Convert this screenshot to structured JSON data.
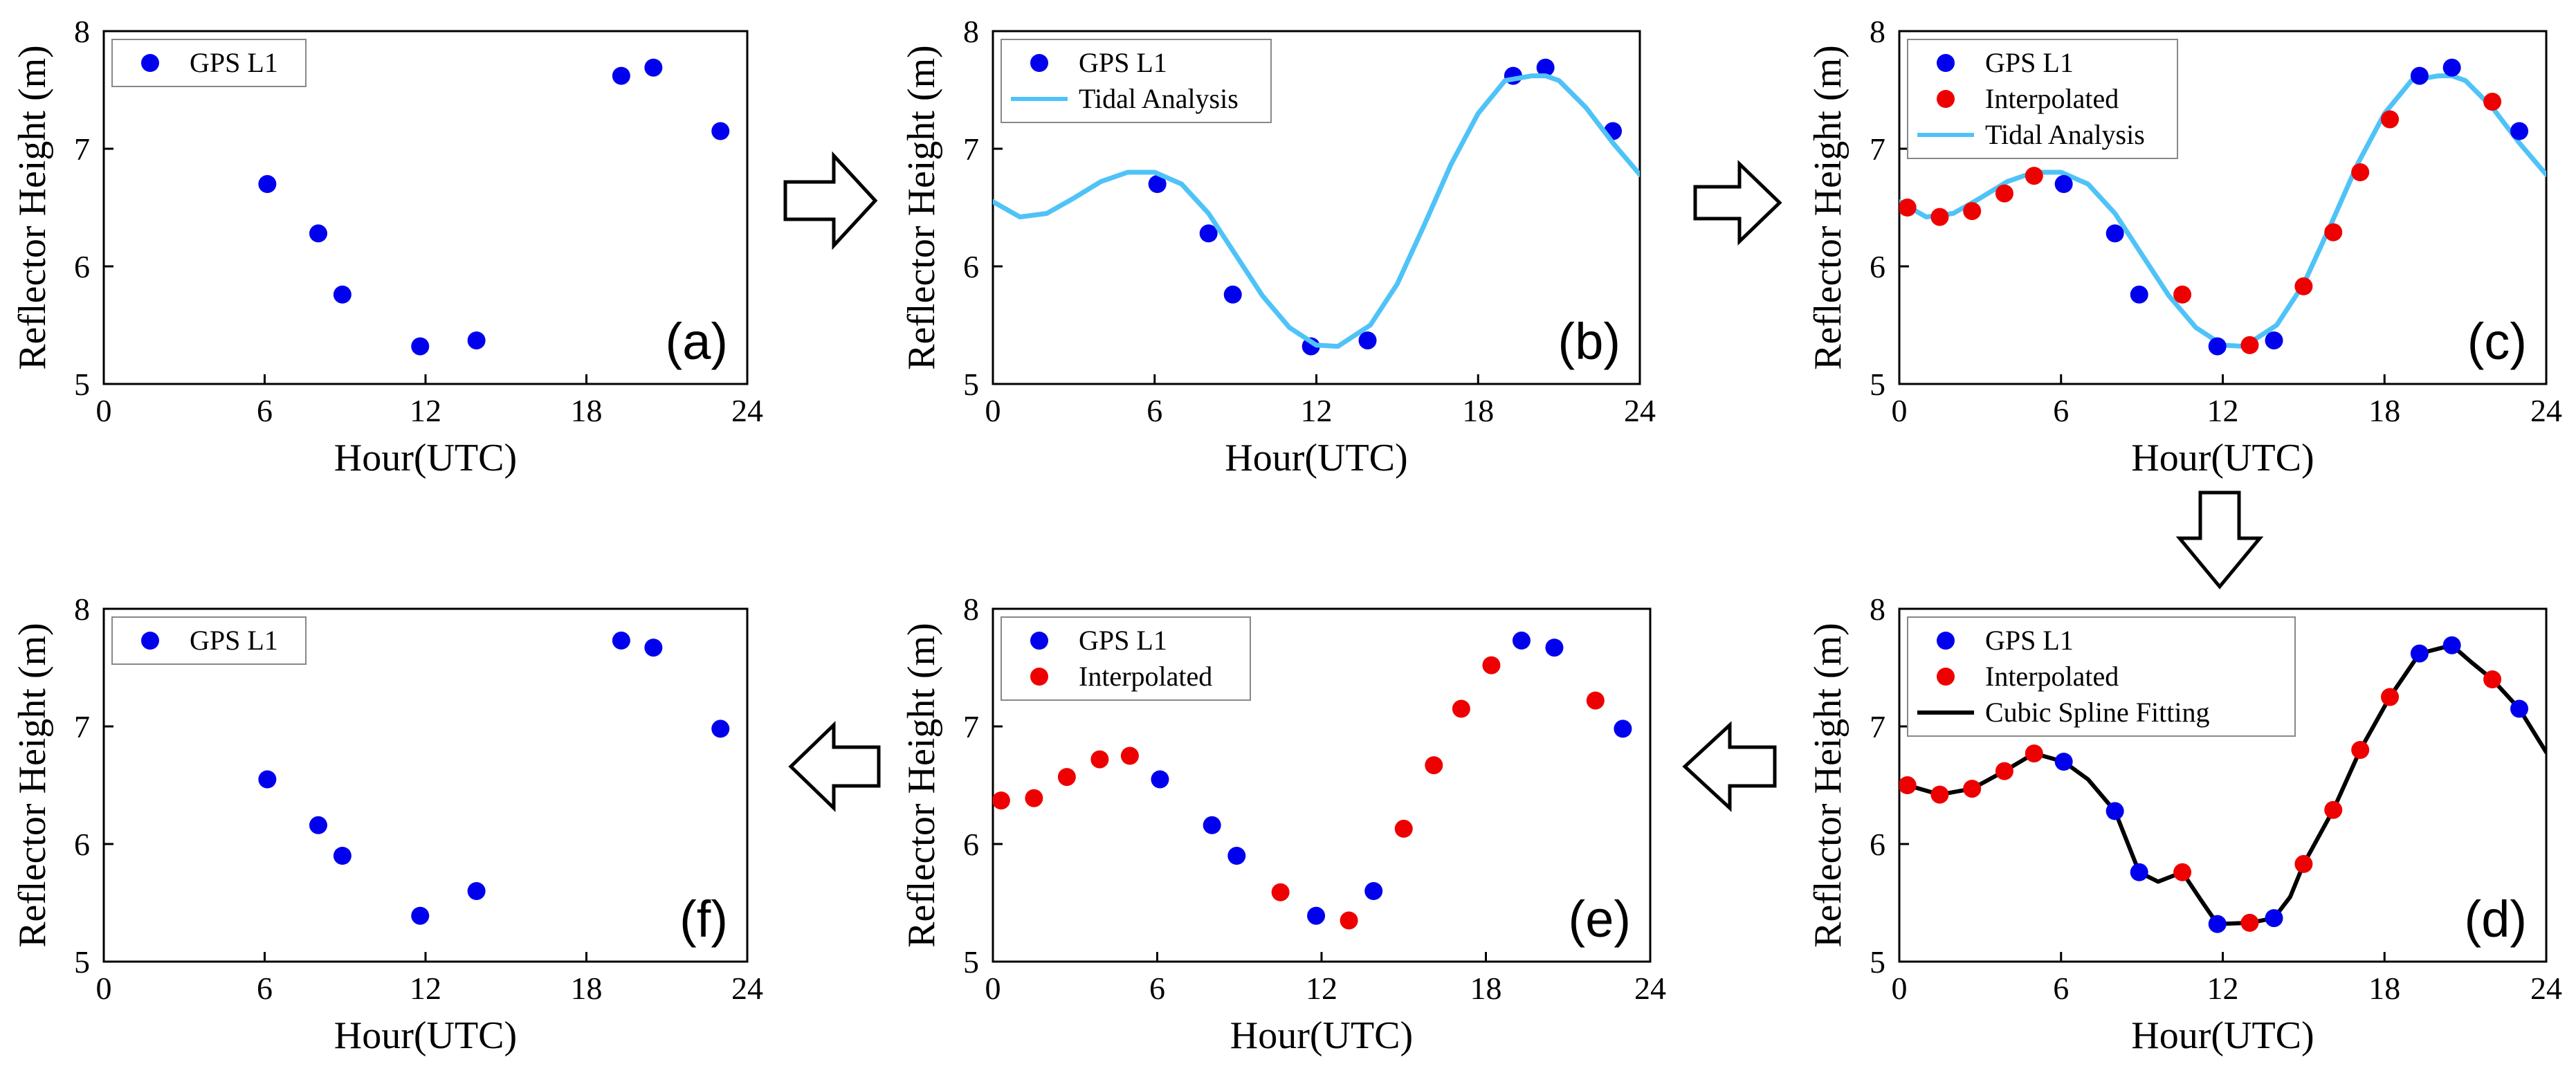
{
  "colors": {
    "gps": "#0000ee",
    "interpolated": "#ee0000",
    "tidal": "#4fc3f7",
    "spline": "#000000"
  },
  "chart_data": [
    {
      "id": "a",
      "type": "scatter",
      "panel_label": "(a)",
      "xlabel": "Hour(UTC)",
      "ylabel": "Reflector Height (m)",
      "xlim": [
        0,
        24
      ],
      "ylim": [
        5,
        8
      ],
      "xticks": [
        0,
        6,
        12,
        18,
        24
      ],
      "yticks": [
        5,
        6,
        7,
        8
      ],
      "legend": [
        "GPS L1"
      ],
      "series": [
        {
          "name": "GPS L1",
          "kind": "points",
          "color": "gps",
          "x": [
            6.1,
            8.0,
            8.9,
            11.8,
            13.9,
            19.3,
            20.5,
            23.0
          ],
          "y": [
            6.7,
            6.28,
            5.76,
            5.32,
            5.37,
            7.62,
            7.69,
            7.15
          ]
        }
      ]
    },
    {
      "id": "b",
      "type": "scatter",
      "panel_label": "(b)",
      "xlabel": "Hour(UTC)",
      "ylabel": "Reflector Height (m)",
      "xlim": [
        0,
        24
      ],
      "ylim": [
        5,
        8
      ],
      "xticks": [
        0,
        6,
        12,
        18,
        24
      ],
      "yticks": [
        5,
        6,
        7,
        8
      ],
      "legend": [
        "GPS L1",
        "Tidal Analysis"
      ],
      "series": [
        {
          "name": "GPS L1",
          "kind": "points",
          "color": "gps",
          "x": [
            6.1,
            8.0,
            8.9,
            11.8,
            13.9,
            19.3,
            20.5,
            23.0
          ],
          "y": [
            6.7,
            6.28,
            5.76,
            5.32,
            5.37,
            7.62,
            7.69,
            7.15
          ]
        },
        {
          "name": "Tidal Analysis",
          "kind": "line",
          "color": "tidal",
          "x": [
            0,
            1,
            2,
            3,
            4,
            5,
            6,
            7,
            8,
            9,
            10,
            11,
            12,
            12.8,
            14,
            15,
            16,
            17,
            18,
            19,
            20,
            20.5,
            21,
            22,
            23,
            24
          ],
          "y": [
            6.55,
            6.42,
            6.45,
            6.58,
            6.72,
            6.8,
            6.8,
            6.7,
            6.45,
            6.1,
            5.75,
            5.48,
            5.33,
            5.32,
            5.5,
            5.85,
            6.35,
            6.87,
            7.3,
            7.58,
            7.62,
            7.62,
            7.58,
            7.35,
            7.05,
            6.78
          ]
        }
      ]
    },
    {
      "id": "c",
      "type": "scatter",
      "panel_label": "(c)",
      "xlabel": "Hour(UTC)",
      "ylabel": "Reflector Height (m)",
      "xlim": [
        0,
        24
      ],
      "ylim": [
        5,
        8
      ],
      "xticks": [
        0,
        6,
        12,
        18,
        24
      ],
      "yticks": [
        5,
        6,
        7,
        8
      ],
      "legend": [
        "GPS L1",
        "Interpolated",
        "Tidal Analysis"
      ],
      "series": [
        {
          "name": "Tidal Analysis",
          "kind": "line",
          "color": "tidal",
          "x": [
            0,
            1,
            2,
            3,
            4,
            5,
            6,
            7,
            8,
            9,
            10,
            11,
            12,
            12.8,
            14,
            15,
            16,
            17,
            18,
            19,
            20,
            20.5,
            21,
            22,
            23,
            24
          ],
          "y": [
            6.55,
            6.42,
            6.45,
            6.58,
            6.72,
            6.8,
            6.8,
            6.7,
            6.45,
            6.1,
            5.75,
            5.48,
            5.33,
            5.32,
            5.5,
            5.85,
            6.35,
            6.87,
            7.3,
            7.58,
            7.62,
            7.62,
            7.58,
            7.35,
            7.05,
            6.78
          ]
        },
        {
          "name": "Interpolated",
          "kind": "points",
          "color": "interpolated",
          "x": [
            0.3,
            1.5,
            2.7,
            3.9,
            5.0,
            10.5,
            13.0,
            15.0,
            16.1,
            17.1,
            18.2,
            22.0
          ],
          "y": [
            6.5,
            6.42,
            6.47,
            6.62,
            6.77,
            5.76,
            5.33,
            5.83,
            6.29,
            6.8,
            7.25,
            7.4
          ]
        },
        {
          "name": "GPS L1",
          "kind": "points",
          "color": "gps",
          "x": [
            6.1,
            8.0,
            8.9,
            11.8,
            13.9,
            19.3,
            20.5,
            23.0
          ],
          "y": [
            6.7,
            6.28,
            5.76,
            5.32,
            5.37,
            7.62,
            7.69,
            7.15
          ]
        }
      ]
    },
    {
      "id": "d",
      "type": "scatter",
      "panel_label": "(d)",
      "xlabel": "Hour(UTC)",
      "ylabel": "Reflector Height (m)",
      "xlim": [
        0,
        24
      ],
      "ylim": [
        5,
        8
      ],
      "xticks": [
        0,
        6,
        12,
        18,
        24
      ],
      "yticks": [
        5,
        6,
        7,
        8
      ],
      "legend": [
        "GPS L1",
        "Interpolated",
        "Cubic Spline Fitting"
      ],
      "series": [
        {
          "name": "Cubic Spline Fitting",
          "kind": "line",
          "color": "spline",
          "x": [
            0,
            0.3,
            1.5,
            2.7,
            3.9,
            5.0,
            6.1,
            7.0,
            8.0,
            8.9,
            9.6,
            10.5,
            11.2,
            11.8,
            13.0,
            13.9,
            14.5,
            15.0,
            16.1,
            17.1,
            18.2,
            19.3,
            20.5,
            21.2,
            22.0,
            23.0,
            24
          ],
          "y": [
            6.5,
            6.5,
            6.42,
            6.47,
            6.62,
            6.77,
            6.7,
            6.55,
            6.28,
            5.76,
            5.68,
            5.76,
            5.52,
            5.32,
            5.33,
            5.37,
            5.55,
            5.83,
            6.29,
            6.8,
            7.25,
            7.62,
            7.69,
            7.55,
            7.4,
            7.15,
            6.78
          ]
        },
        {
          "name": "Interpolated",
          "kind": "points",
          "color": "interpolated",
          "x": [
            0.3,
            1.5,
            2.7,
            3.9,
            5.0,
            10.5,
            13.0,
            15.0,
            16.1,
            17.1,
            18.2,
            22.0
          ],
          "y": [
            6.5,
            6.42,
            6.47,
            6.62,
            6.77,
            5.76,
            5.33,
            5.83,
            6.29,
            6.8,
            7.25,
            7.4
          ]
        },
        {
          "name": "GPS L1",
          "kind": "points",
          "color": "gps",
          "x": [
            6.1,
            8.0,
            8.9,
            11.8,
            13.9,
            19.3,
            20.5,
            23.0
          ],
          "y": [
            6.7,
            6.28,
            5.76,
            5.32,
            5.37,
            7.62,
            7.69,
            7.15
          ]
        }
      ]
    },
    {
      "id": "e",
      "type": "scatter",
      "panel_label": "(e)",
      "xlabel": "Hour(UTC)",
      "ylabel": "Reflector Height (m)",
      "xlim": [
        0,
        24
      ],
      "ylim": [
        5,
        8
      ],
      "xticks": [
        0,
        6,
        12,
        18,
        24
      ],
      "yticks": [
        5,
        6,
        7,
        8
      ],
      "legend": [
        "GPS L1",
        "Interpolated"
      ],
      "series": [
        {
          "name": "Interpolated",
          "kind": "points",
          "color": "interpolated",
          "x": [
            0.3,
            1.5,
            2.7,
            3.9,
            5.0,
            10.5,
            13.0,
            15.0,
            16.1,
            17.1,
            18.2,
            22.0
          ],
          "y": [
            6.37,
            6.39,
            6.57,
            6.72,
            6.75,
            5.59,
            5.35,
            6.13,
            6.67,
            7.15,
            7.52,
            7.22
          ]
        },
        {
          "name": "GPS L1",
          "kind": "points",
          "color": "gps",
          "x": [
            6.1,
            8.0,
            8.9,
            11.8,
            13.9,
            19.3,
            20.5,
            23.0
          ],
          "y": [
            6.55,
            6.16,
            5.9,
            5.39,
            5.6,
            7.73,
            7.67,
            6.98
          ]
        }
      ]
    },
    {
      "id": "f",
      "type": "scatter",
      "panel_label": "(f)",
      "xlabel": "Hour(UTC)",
      "ylabel": "Reflector Height (m)",
      "xlim": [
        0,
        24
      ],
      "ylim": [
        5,
        8
      ],
      "xticks": [
        0,
        6,
        12,
        18,
        24
      ],
      "yticks": [
        5,
        6,
        7,
        8
      ],
      "legend": [
        "GPS L1"
      ],
      "series": [
        {
          "name": "GPS L1",
          "kind": "points",
          "color": "gps",
          "x": [
            6.1,
            8.0,
            8.9,
            11.8,
            13.9,
            19.3,
            20.5,
            23.0
          ],
          "y": [
            6.55,
            6.16,
            5.9,
            5.39,
            5.6,
            7.73,
            7.67,
            6.98
          ]
        }
      ]
    }
  ]
}
